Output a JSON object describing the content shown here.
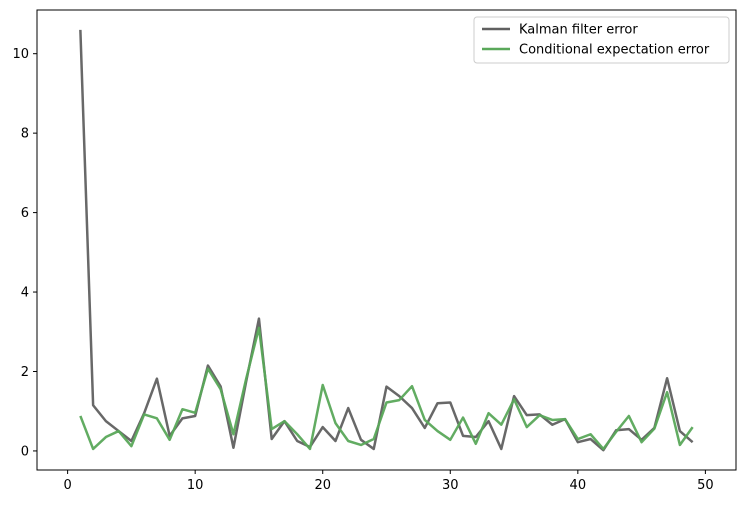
{
  "chart_data": {
    "type": "line",
    "title": "",
    "xlabel": "",
    "ylabel": "",
    "xlim": [
      -2.4,
      52.4
    ],
    "ylim": [
      -0.48,
      11.1
    ],
    "xticks": [
      0,
      10,
      20,
      30,
      40,
      50
    ],
    "yticks": [
      0,
      2,
      4,
      6,
      8,
      10
    ],
    "grid": false,
    "legend_position": "upper right",
    "x": [
      1,
      2,
      3,
      4,
      5,
      6,
      7,
      8,
      9,
      10,
      11,
      12,
      13,
      14,
      15,
      16,
      17,
      18,
      19,
      20,
      21,
      22,
      23,
      24,
      25,
      26,
      27,
      28,
      29,
      30,
      31,
      32,
      33,
      34,
      35,
      36,
      37,
      38,
      39,
      40,
      41,
      42,
      43,
      44,
      45,
      46,
      47,
      48,
      49
    ],
    "series": [
      {
        "name": "Kalman filter error",
        "color": "#606060",
        "values": [
          10.6,
          1.15,
          0.75,
          0.5,
          0.25,
          0.95,
          1.82,
          0.38,
          0.82,
          0.88,
          2.15,
          1.62,
          0.08,
          1.75,
          3.33,
          0.3,
          0.75,
          0.25,
          0.1,
          0.6,
          0.25,
          1.08,
          0.28,
          0.05,
          1.62,
          1.38,
          1.08,
          0.58,
          1.2,
          1.22,
          0.38,
          0.35,
          0.75,
          0.05,
          1.38,
          0.9,
          0.92,
          0.66,
          0.8,
          0.22,
          0.3,
          0.02,
          0.52,
          0.55,
          0.28,
          0.58,
          1.83,
          0.5,
          0.22
        ]
      },
      {
        "name": "Conditional expectation error",
        "color": "#5aa85a",
        "values": [
          0.88,
          0.05,
          0.35,
          0.5,
          0.12,
          0.92,
          0.82,
          0.28,
          1.05,
          0.96,
          2.07,
          1.55,
          0.42,
          1.82,
          3.1,
          0.55,
          0.75,
          0.42,
          0.05,
          1.66,
          0.7,
          0.25,
          0.15,
          0.3,
          1.22,
          1.28,
          1.63,
          0.78,
          0.5,
          0.28,
          0.84,
          0.18,
          0.95,
          0.66,
          1.3,
          0.6,
          0.9,
          0.78,
          0.8,
          0.3,
          0.42,
          0.05,
          0.48,
          0.88,
          0.22,
          0.56,
          1.48,
          0.15,
          0.6
        ]
      }
    ]
  }
}
